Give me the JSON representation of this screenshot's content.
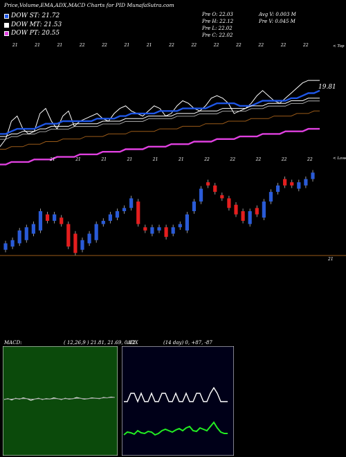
{
  "header": {
    "title": "Price,Volume,EMA,ADX,MACD Charts for PID MunafaSutra.com",
    "legend": [
      {
        "label": "DOW ST: 21.72",
        "color": "#1e56e6"
      },
      {
        "label": "DOW MT: 21.53",
        "color": "#ffffff"
      },
      {
        "label": "DOW PT: 20.55",
        "color": "#e040e0"
      }
    ],
    "stats": {
      "col1": [
        "Pre   O: 22.03",
        "Pre   H: 22.12",
        "Pre   L: 22.02",
        "Pre   C: 22.02"
      ],
      "col2": [
        "Avg V: 0.003 M",
        "Pre   V: 0.045 M"
      ]
    }
  },
  "chart_data": [
    {
      "type": "line",
      "name": "price-ema-panel",
      "series": [
        {
          "name": "close",
          "color": "#ffffff",
          "values": [
            20.3,
            20.6,
            21.3,
            21.5,
            21.0,
            20.8,
            20.9,
            21.6,
            21.8,
            21.3,
            21.0,
            21.5,
            21.7,
            21.1,
            21.3,
            21.4,
            21.5,
            21.6,
            21.4,
            21.3,
            21.6,
            21.8,
            21.9,
            21.7,
            21.6,
            21.5,
            21.7,
            21.9,
            21.8,
            21.5,
            21.6,
            21.9,
            22.1,
            22.0,
            21.8,
            21.7,
            21.9,
            22.2,
            22.3,
            22.2,
            22.0,
            21.6,
            21.7,
            21.8,
            22.0,
            22.3,
            22.5,
            22.3,
            22.1,
            22.0,
            22.2,
            22.4,
            22.6,
            22.8,
            22.9,
            22.9,
            22.9
          ]
        },
        {
          "name": "ema-short",
          "color": "#1e56e6",
          "values": [
            20.8,
            20.8,
            20.9,
            21.0,
            21.0,
            21.0,
            21.0,
            21.1,
            21.2,
            21.2,
            21.2,
            21.3,
            21.3,
            21.3,
            21.3,
            21.3,
            21.3,
            21.4,
            21.4,
            21.4,
            21.4,
            21.5,
            21.5,
            21.6,
            21.6,
            21.6,
            21.6,
            21.6,
            21.7,
            21.7,
            21.7,
            21.7,
            21.8,
            21.8,
            21.8,
            21.8,
            21.8,
            21.9,
            22.0,
            22.0,
            22.0,
            22.0,
            21.9,
            21.9,
            21.9,
            22.0,
            22.1,
            22.1,
            22.1,
            22.1,
            22.1,
            22.2,
            22.2,
            22.3,
            22.4,
            22.4,
            22.5
          ]
        },
        {
          "name": "ema-mid",
          "color": "#ffffff",
          "values": [
            20.7,
            20.7,
            20.8,
            20.8,
            20.9,
            20.9,
            20.9,
            21.0,
            21.0,
            21.1,
            21.1,
            21.1,
            21.1,
            21.2,
            21.2,
            21.2,
            21.2,
            21.2,
            21.3,
            21.3,
            21.3,
            21.3,
            21.4,
            21.4,
            21.4,
            21.4,
            21.5,
            21.5,
            21.5,
            21.5,
            21.5,
            21.6,
            21.6,
            21.6,
            21.6,
            21.7,
            21.7,
            21.7,
            21.7,
            21.8,
            21.8,
            21.8,
            21.8,
            21.8,
            21.9,
            21.9,
            21.9,
            22.0,
            22.0,
            22.0,
            22.0,
            22.1,
            22.1,
            22.1,
            22.2,
            22.2,
            22.2
          ]
        },
        {
          "name": "ema-long",
          "color": "#9a5a18",
          "values": [
            20.2,
            20.2,
            20.3,
            20.3,
            20.3,
            20.4,
            20.4,
            20.4,
            20.5,
            20.5,
            20.5,
            20.6,
            20.6,
            20.6,
            20.6,
            20.7,
            20.7,
            20.7,
            20.7,
            20.8,
            20.8,
            20.8,
            20.8,
            20.9,
            20.9,
            20.9,
            20.9,
            20.9,
            21.0,
            21.0,
            21.0,
            21.0,
            21.1,
            21.1,
            21.1,
            21.1,
            21.2,
            21.2,
            21.2,
            21.2,
            21.3,
            21.3,
            21.3,
            21.3,
            21.4,
            21.4,
            21.4,
            21.4,
            21.5,
            21.5,
            21.5,
            21.5,
            21.6,
            21.6,
            21.6,
            21.7,
            21.7
          ]
        },
        {
          "name": "ema-pt",
          "color": "#e040e0",
          "values": [
            19.6,
            19.6,
            19.7,
            19.7,
            19.7,
            19.7,
            19.8,
            19.8,
            19.8,
            19.8,
            19.9,
            19.9,
            19.9,
            19.9,
            20.0,
            20.0,
            20.0,
            20.0,
            20.1,
            20.1,
            20.1,
            20.1,
            20.2,
            20.2,
            20.2,
            20.2,
            20.3,
            20.3,
            20.3,
            20.3,
            20.4,
            20.4,
            20.4,
            20.4,
            20.5,
            20.5,
            20.5,
            20.5,
            20.6,
            20.6,
            20.6,
            20.6,
            20.7,
            20.7,
            20.7,
            20.7,
            20.8,
            20.8,
            20.8,
            20.8,
            20.9,
            20.9,
            20.9,
            20.9,
            21.0,
            21.0,
            21.0
          ]
        }
      ],
      "top_ticks": [
        "21",
        "21",
        "21",
        "22",
        "22",
        "21",
        "21",
        "22",
        "22",
        "22",
        "22",
        "22",
        "22",
        "22"
      ],
      "mid_ticks": [
        "21",
        "21",
        "21",
        "21",
        "21",
        "21",
        "22",
        "22",
        "22",
        "22",
        "22"
      ],
      "price_label": "19.81",
      "top_edge_label": "< Top",
      "low_edge_label": "< Lowes"
    },
    {
      "type": "candlestick",
      "name": "candles",
      "baseline_label": "21",
      "candles": [
        {
          "o": 20.1,
          "c": 20.3
        },
        {
          "o": 20.2,
          "c": 20.4
        },
        {
          "o": 20.3,
          "c": 20.7
        },
        {
          "o": 20.4,
          "c": 20.8
        },
        {
          "o": 20.6,
          "c": 20.9
        },
        {
          "o": 20.7,
          "c": 21.3
        },
        {
          "o": 21.2,
          "c": 21.0
        },
        {
          "o": 21.0,
          "c": 21.2
        },
        {
          "o": 21.1,
          "c": 20.9
        },
        {
          "o": 20.9,
          "c": 20.2
        },
        {
          "o": 20.6,
          "c": 20.0
        },
        {
          "o": 20.1,
          "c": 20.4
        },
        {
          "o": 20.3,
          "c": 20.6
        },
        {
          "o": 20.4,
          "c": 20.9
        },
        {
          "o": 20.9,
          "c": 21.0
        },
        {
          "o": 21.0,
          "c": 21.2
        },
        {
          "o": 21.1,
          "c": 21.3
        },
        {
          "o": 21.3,
          "c": 21.4
        },
        {
          "o": 21.4,
          "c": 21.7
        },
        {
          "o": 21.6,
          "c": 20.9
        },
        {
          "o": 20.8,
          "c": 20.7
        },
        {
          "o": 20.6,
          "c": 20.8
        },
        {
          "o": 20.7,
          "c": 20.8
        },
        {
          "o": 20.8,
          "c": 20.5
        },
        {
          "o": 20.6,
          "c": 20.8
        },
        {
          "o": 20.8,
          "c": 20.9
        },
        {
          "o": 20.7,
          "c": 21.2
        },
        {
          "o": 21.3,
          "c": 21.6
        },
        {
          "o": 21.6,
          "c": 22.0
        },
        {
          "o": 22.2,
          "c": 22.1
        },
        {
          "o": 22.1,
          "c": 21.9
        },
        {
          "o": 21.8,
          "c": 21.7
        },
        {
          "o": 21.7,
          "c": 21.4
        },
        {
          "o": 21.5,
          "c": 21.2
        },
        {
          "o": 21.3,
          "c": 21.0
        },
        {
          "o": 20.9,
          "c": 21.3
        },
        {
          "o": 21.4,
          "c": 21.2
        },
        {
          "o": 21.1,
          "c": 21.6
        },
        {
          "o": 21.6,
          "c": 21.9
        },
        {
          "o": 21.9,
          "c": 22.1
        },
        {
          "o": 22.3,
          "c": 22.1
        },
        {
          "o": 22.2,
          "c": 22.1
        },
        {
          "o": 22.0,
          "c": 22.2
        },
        {
          "o": 22.1,
          "c": 22.3
        },
        {
          "o": 22.3,
          "c": 22.5
        }
      ]
    },
    {
      "type": "line",
      "name": "macd-panel",
      "label": "MACD:",
      "params": "( 12,26,9 ) 21.81, 21.69, 0.12",
      "background": "#0b4a0b",
      "series": [
        {
          "name": "macd",
          "color": "#ffffff",
          "values": [
            0.0,
            0.02,
            -0.01,
            0.03,
            0.01,
            0.04,
            0.02,
            -0.02,
            0.01,
            0.03,
            0.0,
            0.02,
            0.01,
            0.04,
            0.02,
            0.0,
            0.03,
            0.01,
            0.02,
            0.05,
            0.03,
            0.01,
            0.02,
            0.04,
            0.03,
            0.02,
            0.05,
            0.04,
            0.06,
            0.05
          ]
        },
        {
          "name": "signal",
          "color": "#9a9a9a",
          "values": [
            0.01,
            0.01,
            0.01,
            0.02,
            0.02,
            0.02,
            0.02,
            0.01,
            0.01,
            0.02,
            0.01,
            0.01,
            0.01,
            0.02,
            0.02,
            0.01,
            0.02,
            0.02,
            0.02,
            0.03,
            0.03,
            0.02,
            0.02,
            0.03,
            0.03,
            0.03,
            0.04,
            0.04,
            0.05,
            0.05
          ]
        }
      ]
    },
    {
      "type": "line",
      "name": "adx-panel",
      "label": "ADX",
      "params": "(14  day) 0, +87, -87",
      "background": "#000018",
      "series": [
        {
          "name": "+DI",
          "color": "#ffffff",
          "values": [
            60,
            60,
            72,
            72,
            60,
            72,
            60,
            60,
            72,
            60,
            60,
            72,
            72,
            60,
            60,
            72,
            60,
            60,
            72,
            60,
            60,
            72,
            72,
            60,
            60,
            72,
            80,
            72,
            60,
            60,
            60
          ]
        },
        {
          "name": "-DI",
          "color": "#22ee22",
          "values": [
            12,
            16,
            15,
            13,
            18,
            15,
            14,
            17,
            16,
            12,
            14,
            18,
            20,
            18,
            16,
            19,
            21,
            18,
            22,
            24,
            18,
            17,
            22,
            20,
            18,
            24,
            30,
            22,
            16,
            14,
            14
          ]
        }
      ]
    }
  ]
}
